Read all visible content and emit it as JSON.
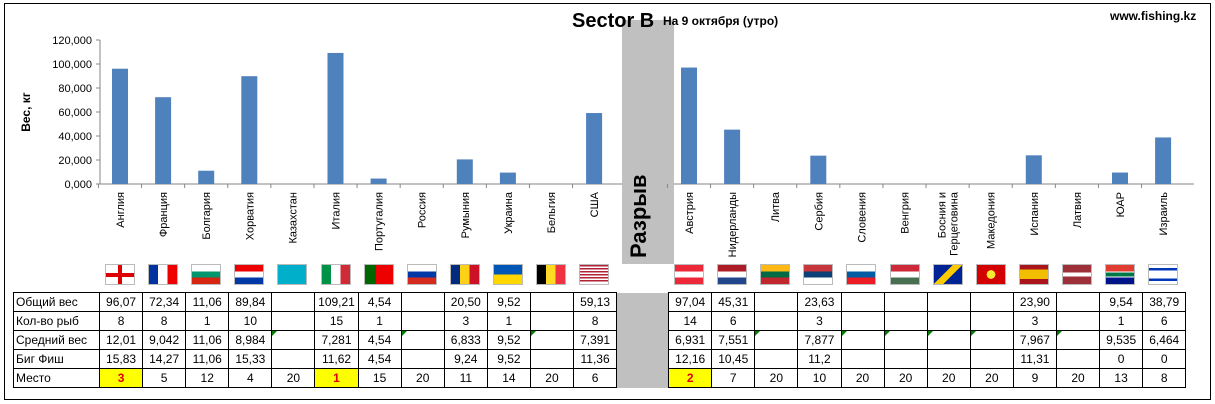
{
  "header": {
    "title": "Sector B",
    "subtitle": "На 9 октября (утро)",
    "site": "www.fishing.kz",
    "gap_label": "Разрыв"
  },
  "chart_data": {
    "type": "bar",
    "title": "Sector B",
    "subtitle": "На 9 октября (утро)",
    "ylabel": "Вес, кг",
    "ylim": [
      0,
      120
    ],
    "yticks": [
      "0,000",
      "20,000",
      "40,000",
      "60,000",
      "80,000",
      "100,000",
      "120,000"
    ],
    "bar_color": "#4f81bd",
    "grid": false,
    "left_group": {
      "categories": [
        "Англия",
        "Франция",
        "Болгария",
        "Хорватия",
        "Казахстан",
        "Италия",
        "Португалия",
        "Россия",
        "Румыния",
        "Украина",
        "Бельгия",
        "США"
      ],
      "values": [
        96.07,
        72.34,
        11.06,
        89.84,
        0,
        109.21,
        4.54,
        0,
        20.5,
        9.52,
        0,
        59.13
      ]
    },
    "right_group": {
      "categories": [
        "Австрия",
        "Нидерланды",
        "Литва",
        "Сербия",
        "Словения",
        "Венгрия",
        "Босния и Герцеговина",
        "Македония",
        "Испания",
        "Латвия",
        "ЮАР",
        "Израиль"
      ],
      "values": [
        97.04,
        45.31,
        0,
        23.63,
        0,
        0,
        0,
        0,
        23.9,
        0,
        9.54,
        38.79
      ]
    }
  },
  "flags": {
    "left": [
      "england",
      "france",
      "bulgaria",
      "croatia",
      "kazakhstan",
      "italy",
      "portugal",
      "russia",
      "romania",
      "ukraine",
      "belgium",
      "usa"
    ],
    "right": [
      "austria",
      "netherlands",
      "lithuania",
      "serbia",
      "slovenia",
      "hungary",
      "bosnia",
      "macedonia",
      "spain",
      "latvia",
      "south-africa",
      "israel"
    ]
  },
  "table": {
    "rows": [
      {
        "label": "Общий вес",
        "left": [
          "96,07",
          "72,34",
          "11,06",
          "89,84",
          "",
          "109,21",
          "4,54",
          "",
          "20,50",
          "9,52",
          "",
          "59,13"
        ],
        "right": [
          "97,04",
          "45,31",
          "",
          "23,63",
          "",
          "",
          "",
          "",
          "23,90",
          "",
          "9,54",
          "38,79"
        ]
      },
      {
        "label": "Кол-во рыб",
        "left": [
          "8",
          "8",
          "1",
          "10",
          "",
          "15",
          "1",
          "",
          "3",
          "1",
          "",
          "8"
        ],
        "right": [
          "14",
          "6",
          "",
          "3",
          "",
          "",
          "",
          "",
          "3",
          "",
          "1",
          "6"
        ]
      },
      {
        "label": "Средний вес",
        "left": [
          "12,01",
          "9,042",
          "11,06",
          "8,984",
          "",
          "7,281",
          "4,54",
          "",
          "6,833",
          "9,52",
          "",
          "7,391"
        ],
        "right": [
          "6,931",
          "7,551",
          "",
          "7,877",
          "",
          "",
          "",
          "",
          "7,967",
          "",
          "9,535",
          "6,464"
        ]
      },
      {
        "label": "Биг Фиш",
        "left": [
          "15,83",
          "14,27",
          "11,06",
          "15,33",
          "",
          "11,62",
          "4,54",
          "",
          "9,24",
          "9,52",
          "",
          "11,36"
        ],
        "right": [
          "12,16",
          "10,45",
          "",
          "11,2",
          "",
          "",
          "",
          "",
          "11,31",
          "",
          "0",
          "0"
        ]
      },
      {
        "label": "Место",
        "left": [
          "3",
          "5",
          "12",
          "4",
          "20",
          "1",
          "15",
          "20",
          "11",
          "14",
          "20",
          "6"
        ],
        "right": [
          "2",
          "7",
          "20",
          "10",
          "20",
          "20",
          "20",
          "20",
          "9",
          "20",
          "13",
          "8"
        ]
      }
    ]
  }
}
